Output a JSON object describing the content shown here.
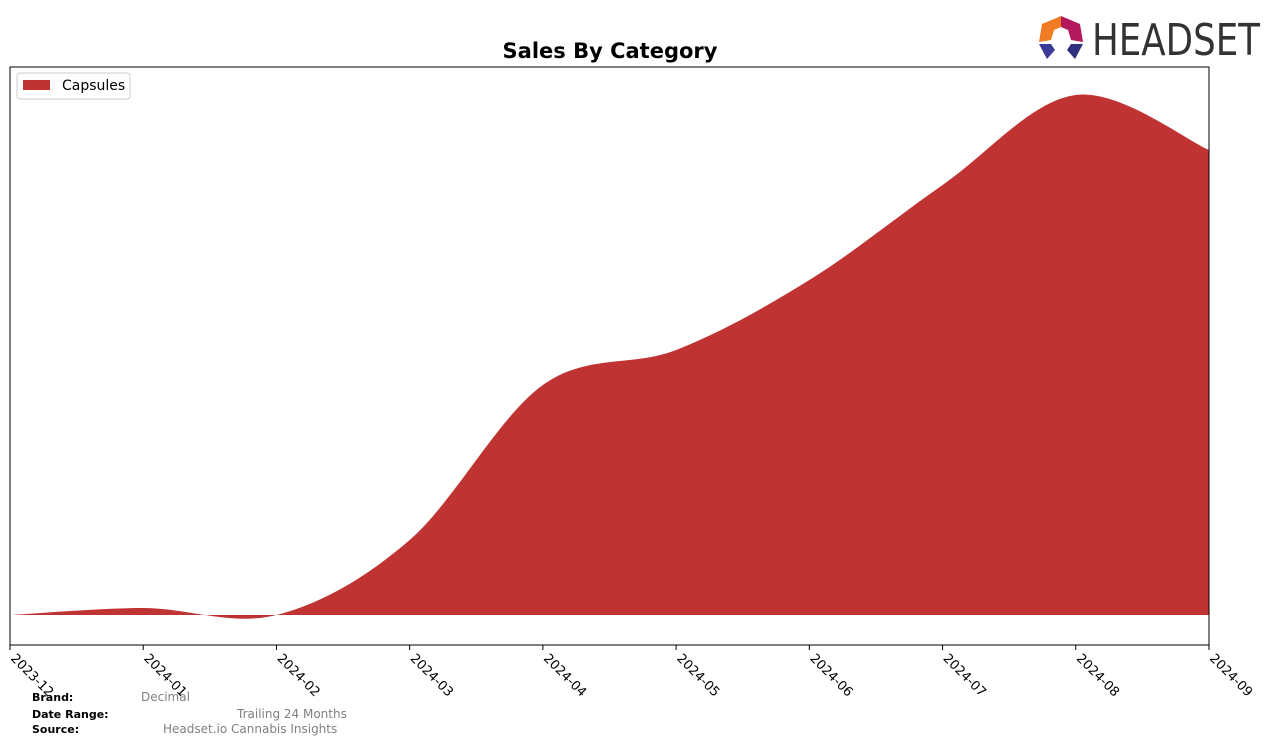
{
  "chart_data": {
    "type": "area",
    "title": "Sales By Category",
    "categories": [
      "2023-12",
      "2024-01",
      "2024-02",
      "2024-03",
      "2024-04",
      "2024-05",
      "2024-06",
      "2024-07",
      "2024-08",
      "2024-09"
    ],
    "series": [
      {
        "name": "Capsules",
        "color": "#c03333",
        "values": [
          0,
          7,
          0,
          75,
          230,
          265,
          335,
          430,
          520,
          465
        ]
      }
    ],
    "ylim": [
      -30,
      548
    ],
    "legend": "upper left"
  },
  "logo": "HEADSET",
  "footer": {
    "brand_label": "Brand:",
    "brand": "Decimal",
    "date_range_label": "Date Range:",
    "date_range": "Trailing 24 Months",
    "source_label": "Source:",
    "source": "Headset.io Cannabis Insights"
  }
}
